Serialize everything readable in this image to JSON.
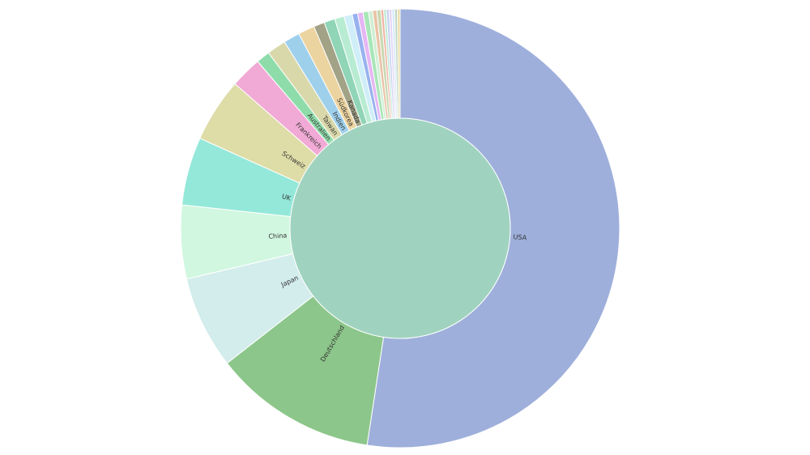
{
  "chart_data": {
    "type": "pie",
    "title": "",
    "legend": "none",
    "center_color": "#a0d3bf",
    "slices": [
      {
        "label": "USA",
        "value": 52.2,
        "color": "#9eafdb",
        "show_label": true
      },
      {
        "label": "Deutschland",
        "value": 12.0,
        "color": "#8cc68a",
        "show_label": true
      },
      {
        "label": "Japan",
        "value": 6.8,
        "color": "#d3ecec",
        "show_label": true
      },
      {
        "label": "China",
        "value": 5.4,
        "color": "#d2f7e0",
        "show_label": true
      },
      {
        "label": "UK",
        "value": 5.0,
        "color": "#94e8d9",
        "show_label": true
      },
      {
        "label": "Schweiz",
        "value": 4.7,
        "color": "#dedca7",
        "show_label": true
      },
      {
        "label": "Frankreich",
        "value": 2.3,
        "color": "#f1a9d5",
        "show_label": true
      },
      {
        "label": "Australien",
        "value": 1.0,
        "color": "#8fdcab",
        "show_label": true
      },
      {
        "label": "Taiwan",
        "value": 1.4,
        "color": "#d8d8aa",
        "show_label": true
      },
      {
        "label": "Indien",
        "value": 1.2,
        "color": "#9ed0ec",
        "show_label": true
      },
      {
        "label": "Südkorea",
        "value": 1.2,
        "color": "#ecd4a0",
        "show_label": true
      },
      {
        "label": "Kanada",
        "value": 0.8,
        "color": "#a2a286",
        "show_label": true
      },
      {
        "label": "",
        "value": 0.8,
        "color": "#8fd5b6",
        "show_label": false
      },
      {
        "label": "",
        "value": 0.7,
        "color": "#b8ecd2",
        "show_label": false
      },
      {
        "label": "",
        "value": 0.6,
        "color": "#d0eef8",
        "show_label": false
      },
      {
        "label": "",
        "value": 0.4,
        "color": "#97b2ee",
        "show_label": false
      },
      {
        "label": "",
        "value": 0.4,
        "color": "#e5b7f3",
        "show_label": false
      },
      {
        "label": "",
        "value": 0.4,
        "color": "#a8e6b7",
        "show_label": false
      },
      {
        "label": "",
        "value": 0.3,
        "color": "#cfeed3",
        "show_label": false
      },
      {
        "label": "",
        "value": 0.3,
        "color": "#e9c3a6",
        "show_label": false
      },
      {
        "label": "",
        "value": 0.3,
        "color": "#c9d8b1",
        "show_label": false
      },
      {
        "label": "",
        "value": 0.2,
        "color": "#f1b2a2",
        "show_label": false
      },
      {
        "label": "",
        "value": 0.2,
        "color": "#bfe9d3",
        "show_label": false
      },
      {
        "label": "",
        "value": 0.2,
        "color": "#c8d0f1",
        "show_label": false
      },
      {
        "label": "",
        "value": 0.2,
        "color": "#e4d6f5",
        "show_label": false
      },
      {
        "label": "",
        "value": 0.2,
        "color": "#d5eaf7",
        "show_label": false
      },
      {
        "label": "",
        "value": 0.2,
        "color": "#c1d6c5",
        "show_label": false
      },
      {
        "label": "",
        "value": 0.2,
        "color": "#eadca8",
        "show_label": false
      }
    ]
  }
}
